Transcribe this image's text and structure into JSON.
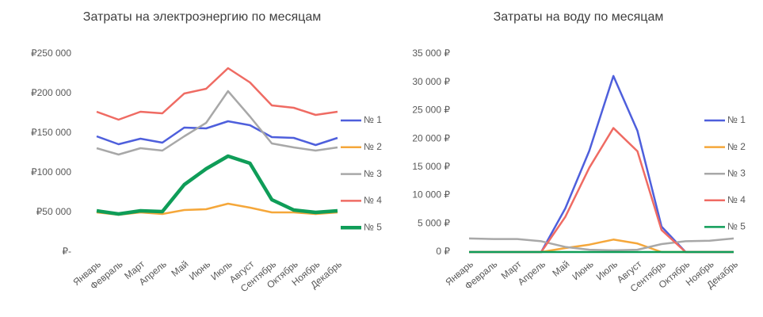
{
  "chart_data": [
    {
      "type": "line",
      "title": "Затраты на электроэнергию по месяцам",
      "categories": [
        "Январь",
        "Февраль",
        "Март",
        "Апрель",
        "Май",
        "Июнь",
        "Июль",
        "Август",
        "Сентябрь",
        "Октябрь",
        "Ноябрь",
        "Декабрь"
      ],
      "ylim": [
        0,
        250000
      ],
      "yticks": [
        {
          "value": 0,
          "label": "₽-"
        },
        {
          "value": 50000,
          "label": "₽50 000"
        },
        {
          "value": 100000,
          "label": "₽100 000"
        },
        {
          "value": 150000,
          "label": "₽150 000"
        },
        {
          "value": 200000,
          "label": "₽200 000"
        },
        {
          "value": 250000,
          "label": "₽250 000"
        }
      ],
      "legend": "right",
      "series": [
        {
          "name": "№ 1",
          "color": "#4e5fdc",
          "line_width": 2.5,
          "values": [
            146000,
            136000,
            143000,
            138000,
            157000,
            156000,
            165000,
            160000,
            145000,
            144000,
            135000,
            144000
          ]
        },
        {
          "name": "№ 2",
          "color": "#f5a73a",
          "line_width": 2.5,
          "values": [
            50000,
            47000,
            50000,
            48000,
            53000,
            54000,
            61000,
            56000,
            50000,
            50000,
            48000,
            50000
          ]
        },
        {
          "name": "№ 3",
          "color": "#a8a8a8",
          "line_width": 2.5,
          "values": [
            131000,
            123000,
            131000,
            128000,
            146000,
            163000,
            203000,
            171000,
            137000,
            132000,
            128000,
            132000
          ]
        },
        {
          "name": "№ 4",
          "color": "#ef6b63",
          "line_width": 2.5,
          "values": [
            177000,
            167000,
            177000,
            175000,
            200000,
            206000,
            232000,
            214000,
            185000,
            182000,
            173000,
            177000
          ]
        },
        {
          "name": "№ 5",
          "color": "#0f9d58",
          "line_width": 4.5,
          "values": [
            52000,
            48000,
            52000,
            51000,
            85000,
            105000,
            121000,
            112000,
            66000,
            53000,
            50000,
            52000
          ]
        }
      ]
    },
    {
      "type": "line",
      "title": "Затраты на воду по месяцам",
      "categories": [
        "Январь",
        "Февраль",
        "Март",
        "Апрель",
        "Май",
        "Июнь",
        "Июль",
        "Август",
        "Сентябрь",
        "Октябрь",
        "Ноябрь",
        "Декабрь"
      ],
      "ylim": [
        0,
        35000
      ],
      "yticks": [
        {
          "value": 0,
          "label": "0 ₽"
        },
        {
          "value": 5000,
          "label": "5 000 ₽"
        },
        {
          "value": 10000,
          "label": "10 000 ₽"
        },
        {
          "value": 15000,
          "label": "15 000 ₽"
        },
        {
          "value": 20000,
          "label": "20 000 ₽"
        },
        {
          "value": 25000,
          "label": "25 000 ₽"
        },
        {
          "value": 30000,
          "label": "30 000 ₽"
        },
        {
          "value": 35000,
          "label": "35 000 ₽"
        }
      ],
      "legend": "right",
      "series": [
        {
          "name": "№ 1",
          "color": "#4e5fdc",
          "line_width": 2.5,
          "values": [
            0,
            0,
            0,
            0,
            7700,
            17900,
            31100,
            21400,
            4500,
            0,
            0,
            0
          ]
        },
        {
          "name": "№ 2",
          "color": "#f5a73a",
          "line_width": 2.5,
          "values": [
            0,
            0,
            0,
            0,
            700,
            1300,
            2200,
            1500,
            0,
            0,
            0,
            0
          ]
        },
        {
          "name": "№ 3",
          "color": "#a8a8a8",
          "line_width": 2.5,
          "values": [
            2400,
            2300,
            2300,
            1900,
            900,
            400,
            300,
            400,
            1400,
            1900,
            2000,
            2400
          ]
        },
        {
          "name": "№ 4",
          "color": "#ef6b63",
          "line_width": 2.5,
          "values": [
            0,
            0,
            0,
            0,
            6200,
            14900,
            21900,
            17800,
            3900,
            0,
            0,
            0
          ]
        },
        {
          "name": "№ 5",
          "color": "#0f9d58",
          "line_width": 2.5,
          "values": [
            0,
            0,
            0,
            0,
            0,
            0,
            0,
            0,
            0,
            0,
            0,
            0
          ]
        }
      ]
    }
  ]
}
